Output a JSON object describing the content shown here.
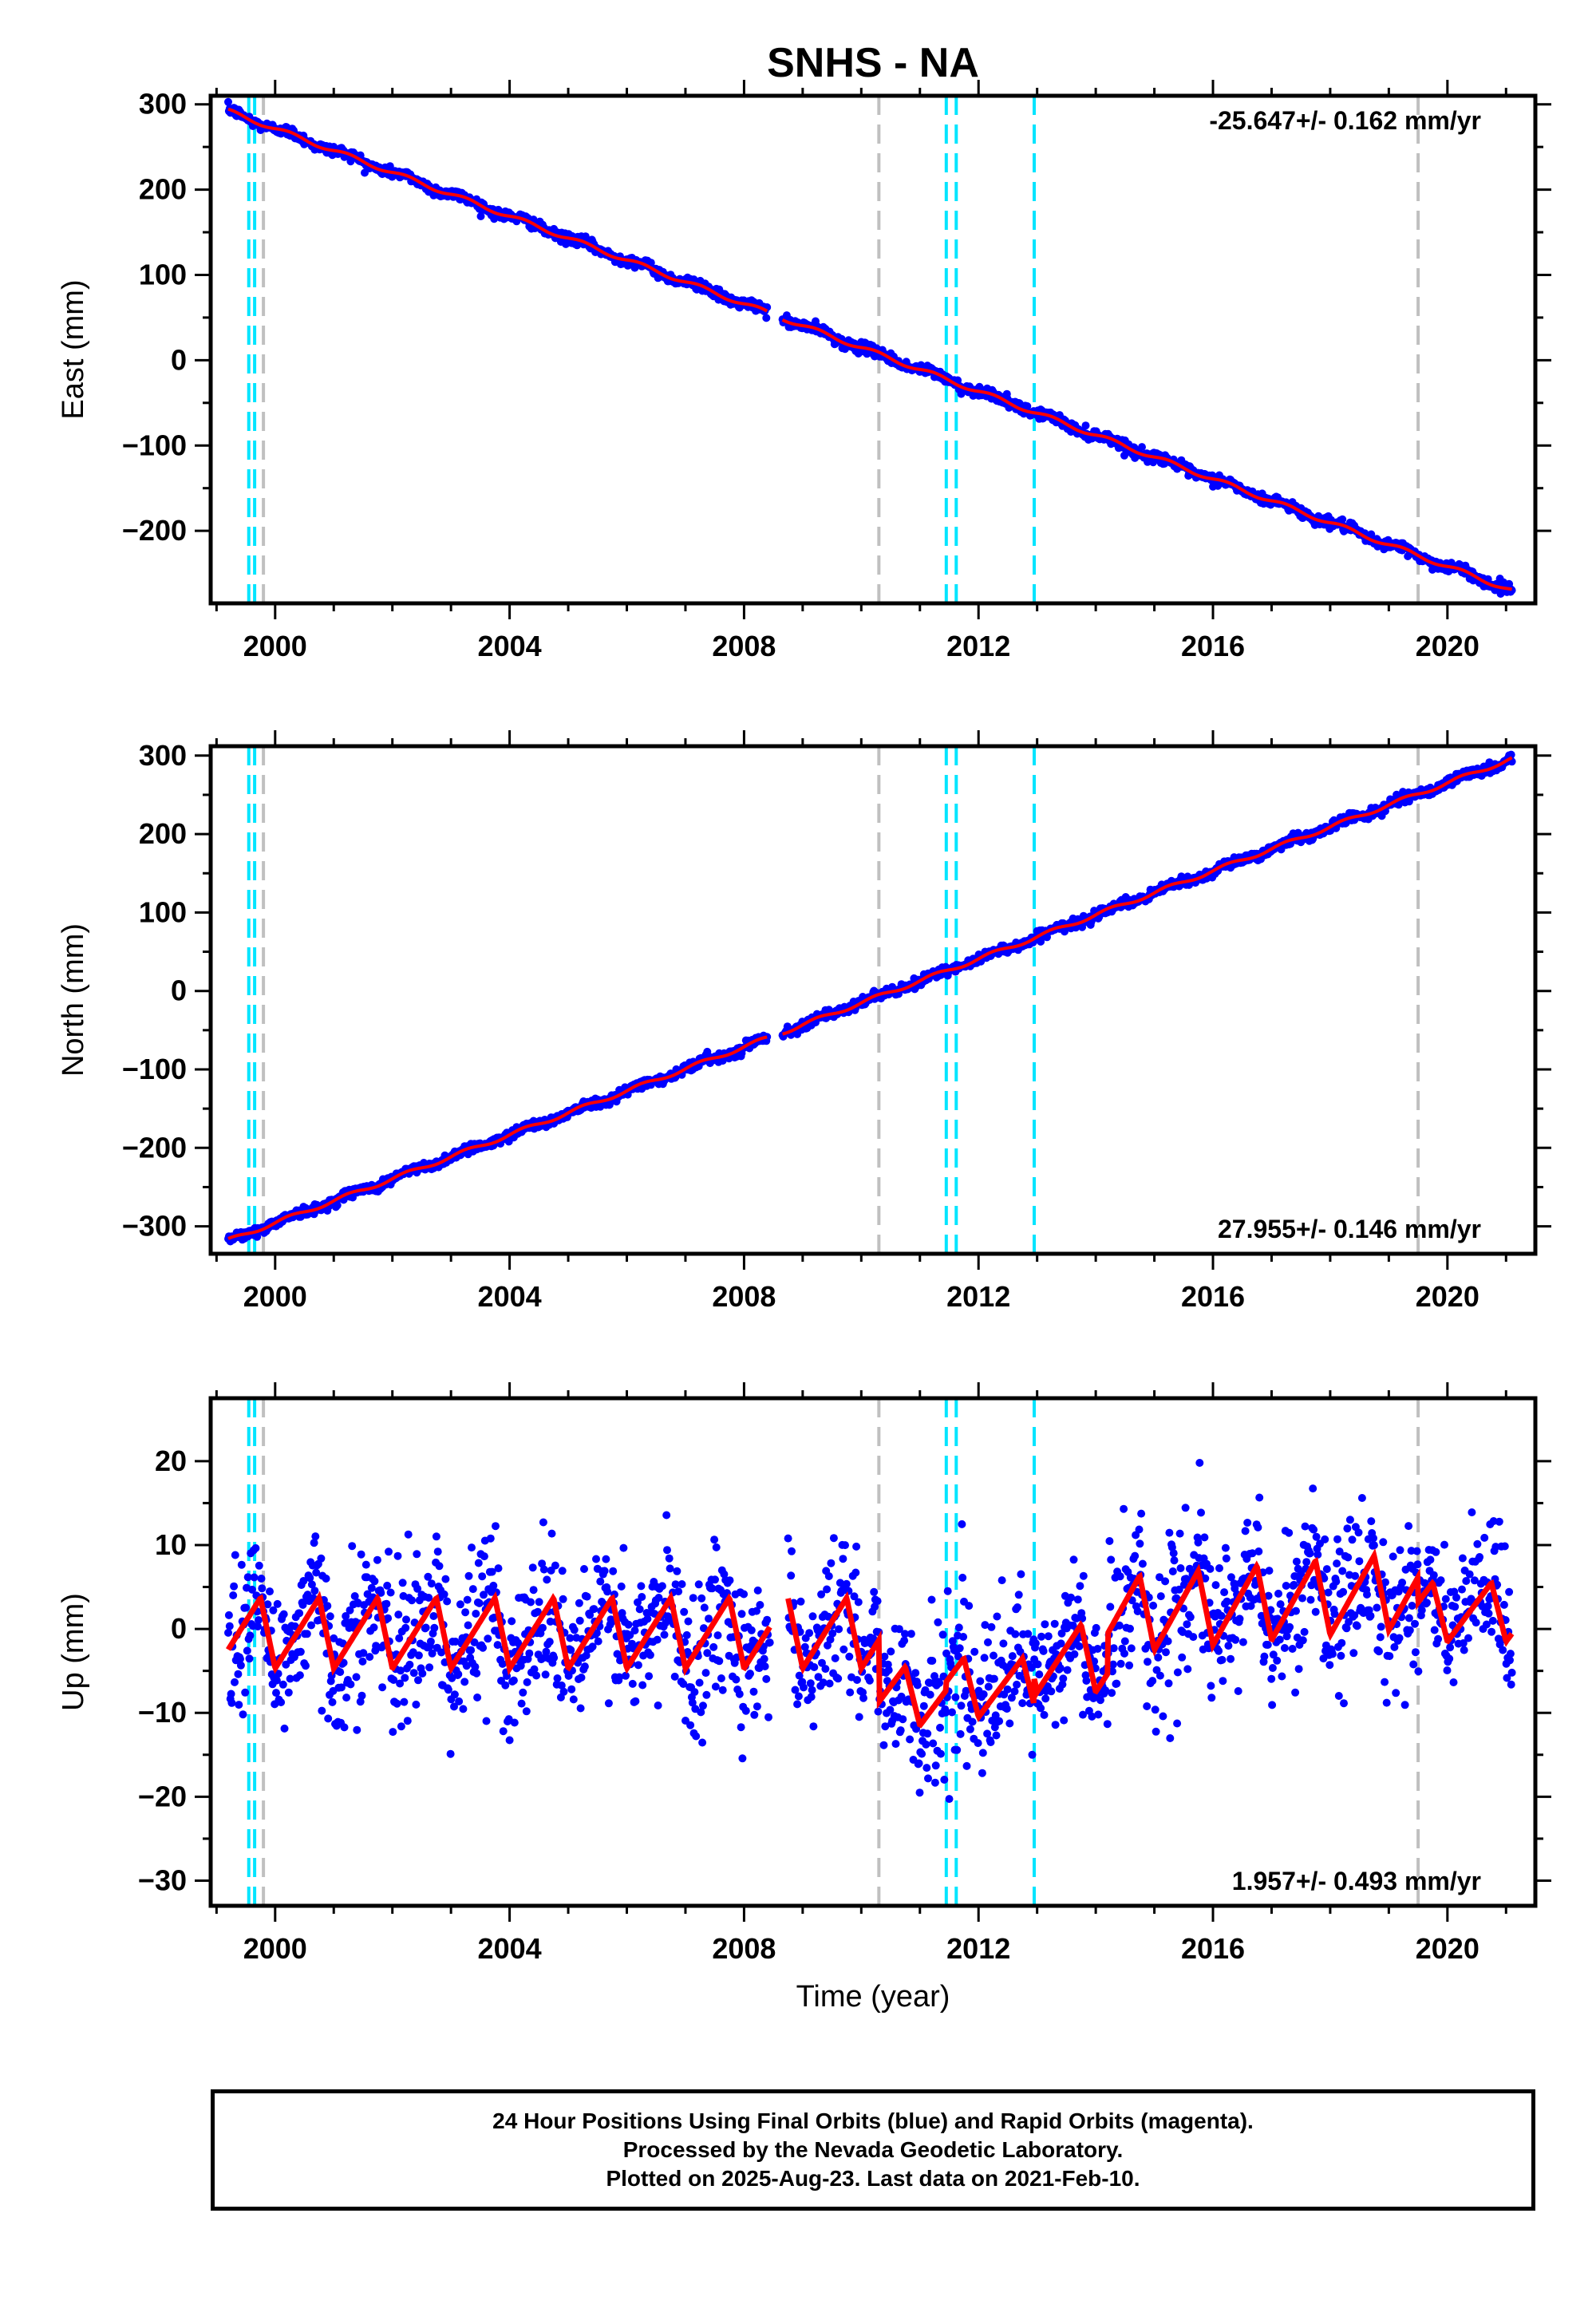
{
  "title": "SNHS - NA",
  "colors": {
    "data_points": "#0000ff",
    "model_line": "#ff0000",
    "event_cyan": "#00e5ff",
    "event_gray": "#c0c0c0",
    "axes": "#000000"
  },
  "footer": {
    "line1": "24 Hour Positions Using Final Orbits (blue) and Rapid Orbits (magenta).",
    "line2": "Processed by the Nevada Geodetic Laboratory.",
    "line3": "Plotted on 2025-Aug-23. Last data on 2021-Feb-10."
  },
  "chart_data": [
    {
      "type": "scatter",
      "component": "east",
      "ylabel": "East (mm)",
      "xlabel": "",
      "velocity_text": "-25.647+/- 0.162 mm/yr",
      "velocity_label_position": "top-right",
      "xlim": [
        1998.9,
        2021.5
      ],
      "ylim": [
        -285,
        310
      ],
      "x_ticks": [
        2000,
        2004,
        2008,
        2012,
        2016,
        2020
      ],
      "y_ticks": [
        300,
        200,
        100,
        0,
        -100,
        -200
      ],
      "y_tick_labels": [
        "300",
        "200",
        "100",
        "0",
        "−100",
        "−200"
      ],
      "trend": {
        "x_start": 1999.2,
        "x_end": 2021.1,
        "y_start": 292,
        "y_end": -270
      },
      "noise_mm": 3,
      "series": [
        {
          "values_description_is_not_rendered": false
        }
      ],
      "grid": false
    },
    {
      "type": "scatter",
      "component": "north",
      "ylabel": "North (mm)",
      "xlabel": "",
      "velocity_text": "27.955+/- 0.146 mm/yr",
      "velocity_label_position": "bottom-right",
      "xlim": [
        1998.9,
        2021.5
      ],
      "ylim": [
        -335,
        312
      ],
      "x_ticks": [
        2000,
        2004,
        2008,
        2012,
        2016,
        2020
      ],
      "y_ticks": [
        300,
        200,
        100,
        0,
        -100,
        -200,
        -300
      ],
      "y_tick_labels": [
        "300",
        "200",
        "100",
        "0",
        "−100",
        "−200",
        "−300"
      ],
      "trend": {
        "x_start": 1999.2,
        "x_end": 2021.1,
        "y_start": -318,
        "y_end": 296
      },
      "noise_mm": 3,
      "grid": false
    },
    {
      "type": "scatter",
      "component": "up",
      "ylabel": "Up (mm)",
      "xlabel": "Time (year)",
      "velocity_text": "1.957+/- 0.493 mm/yr",
      "velocity_label_position": "bottom-right",
      "xlim": [
        1998.9,
        2021.5
      ],
      "ylim": [
        -33,
        27.5
      ],
      "x_ticks": [
        2000,
        2004,
        2008,
        2012,
        2016,
        2020
      ],
      "y_ticks": [
        20,
        10,
        0,
        -10,
        -20,
        -30
      ],
      "y_tick_labels": [
        "20",
        "10",
        "0",
        "−10",
        "−20",
        "−30"
      ],
      "segments": [
        {
          "x0": 1999.2,
          "x1": 2010.3,
          "base": -0.5,
          "amplitude": 4.2,
          "slope": 0.0
        },
        {
          "x0": 2010.3,
          "x1": 2011.45,
          "base": -8.0,
          "amplitude": 3.5,
          "slope": 0.0
        },
        {
          "x0": 2011.45,
          "x1": 2012.95,
          "base": -7.0,
          "amplitude": 3.5,
          "slope": 0.0
        },
        {
          "x0": 2012.95,
          "x1": 2014.2,
          "base": -3.5,
          "amplitude": 4.0,
          "slope": 0.0
        },
        {
          "x0": 2014.2,
          "x1": 2019.5,
          "base": 1.5,
          "amplitude": 4.5,
          "slope": 0.6
        },
        {
          "x0": 2019.5,
          "x1": 2021.1,
          "base": 2.0,
          "amplitude": 3.5,
          "slope": 0.0
        }
      ],
      "noise_mm": 4.5,
      "grid": false
    }
  ],
  "events": {
    "cyan": [
      1999.55,
      1999.65,
      2011.45,
      2011.62,
      2012.95
    ],
    "gray": [
      1999.8,
      2010.3,
      2019.5
    ]
  }
}
